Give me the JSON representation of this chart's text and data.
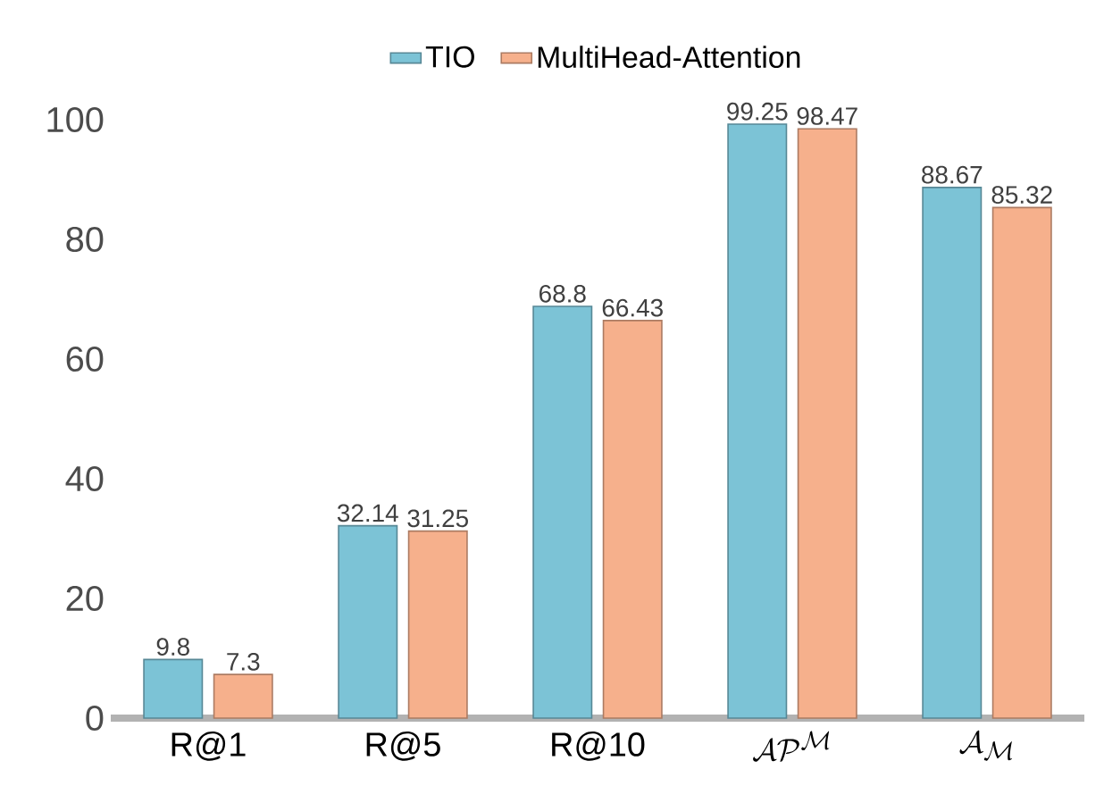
{
  "chart_data": {
    "type": "bar",
    "categories": [
      "\\mathrm{R@1}",
      "\\mathrm{R@5}",
      "\\mathrm{R@10}",
      "\\mathcal{AP}^{\\mathcal{M}}",
      "\\mathcal{A}_{\\mathcal{M}}"
    ],
    "series": [
      {
        "name": "TIO",
        "color": "#7cc3d6",
        "values": [
          9.8,
          32.14,
          68.8,
          99.25,
          88.67
        ]
      },
      {
        "name": "MultiHead-Attention",
        "color": "#f6b08c",
        "values": [
          7.3,
          31.25,
          66.43,
          98.47,
          85.32
        ]
      }
    ],
    "ylim": [
      0,
      100
    ],
    "yticks": [
      0,
      20,
      40,
      60,
      80,
      100
    ],
    "data_labels": true,
    "legend": "top",
    "grid": false
  }
}
